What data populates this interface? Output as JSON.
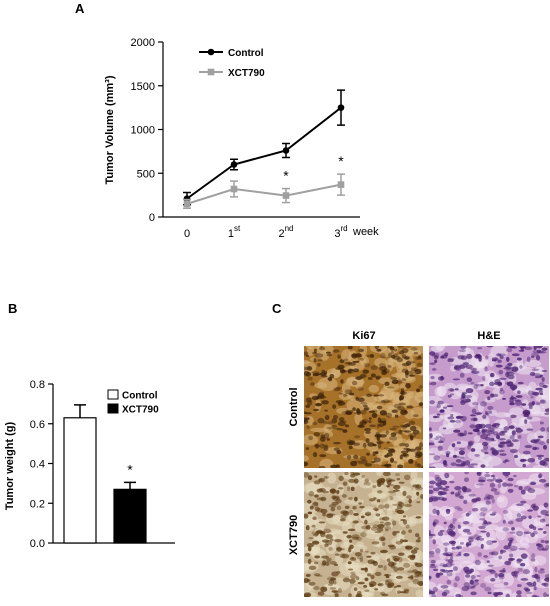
{
  "panels": {
    "a": {
      "letter": "A"
    },
    "b": {
      "letter": "B"
    },
    "c": {
      "letter": "C"
    }
  },
  "chart_data": [
    {
      "type": "line",
      "panel": "A",
      "title": "",
      "ylabel": "Tumor Volume (mm³)",
      "xlabel": "week",
      "x_ticks": [
        {
          "base": "0",
          "sup": ""
        },
        {
          "base": "1",
          "sup": "st"
        },
        {
          "base": "2",
          "sup": "nd"
        },
        {
          "base": "3",
          "sup": "rd"
        }
      ],
      "y_ticks": [
        "0",
        "500",
        "1000",
        "1500",
        "2000"
      ],
      "ylim": [
        0,
        2000
      ],
      "x": [
        0,
        1,
        2,
        3
      ],
      "series": [
        {
          "name": "Control",
          "color": "#000000",
          "values": [
            210,
            600,
            760,
            1250
          ],
          "errors": [
            70,
            60,
            80,
            200
          ]
        },
        {
          "name": "XCT790",
          "color": "#a0a0a0",
          "values": [
            150,
            320,
            245,
            370
          ],
          "errors": [
            50,
            90,
            80,
            120
          ]
        }
      ],
      "annotations": [
        {
          "x": 2,
          "text": "*"
        },
        {
          "x": 3,
          "text": "*"
        }
      ],
      "legend_position": "top-left",
      "grid": false
    },
    {
      "type": "bar",
      "panel": "B",
      "ylabel": "Tumor weight  (g)",
      "categories": [
        "Control",
        "XCT790"
      ],
      "values": [
        0.63,
        0.27
      ],
      "errors": [
        0.065,
        0.035
      ],
      "colors": [
        "#ffffff",
        "#000000"
      ],
      "y_ticks": [
        "0.0",
        "0.2",
        "0.4",
        "0.6",
        "0.8"
      ],
      "ylim": [
        0,
        0.8
      ],
      "annotations": [
        {
          "category": "XCT790",
          "text": "*"
        }
      ],
      "legend_position": "top-right",
      "grid": false
    }
  ],
  "panel_c": {
    "columns": [
      "Ki67",
      "H&E"
    ],
    "rows": [
      "Control",
      "XCT790"
    ],
    "tiles": [
      {
        "name": "ki67-control",
        "base": "#a6722a",
        "dot": "#3f2308",
        "light": "#d9b77e"
      },
      {
        "name": "he-control",
        "base": "#c69ccd",
        "dot": "#4a2070",
        "light": "#eee3f1"
      },
      {
        "name": "ki67-xct790",
        "base": "#c6b290",
        "dot": "#5a3a14",
        "light": "#e8dcc0"
      },
      {
        "name": "he-xct790",
        "base": "#d2a8d2",
        "dot": "#532a78",
        "light": "#f0e4f2"
      }
    ]
  }
}
